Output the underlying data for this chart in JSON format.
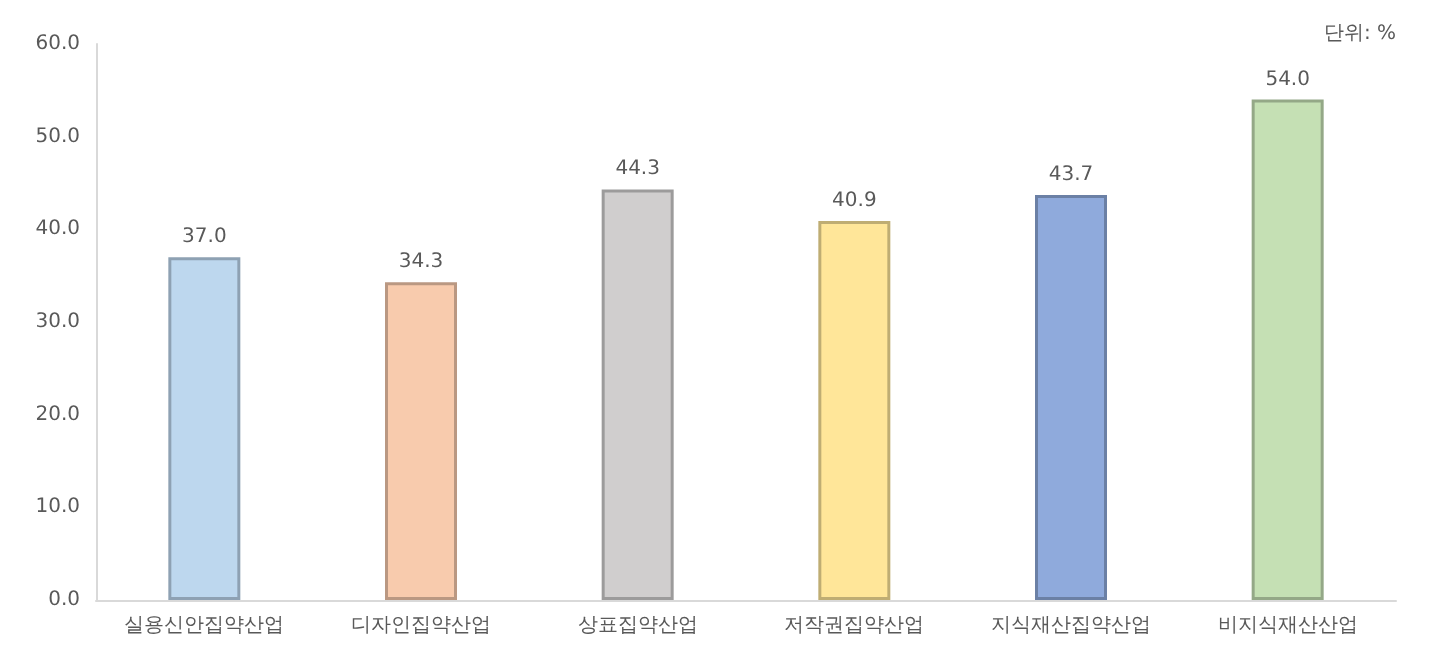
{
  "chart_data": {
    "type": "bar",
    "categories": [
      "실용신안집약산업",
      "디자인집약산업",
      "상표집약산업",
      "저작권집약산업",
      "지식재산집약산업",
      "비지식재산산업"
    ],
    "values": [
      37.0,
      34.3,
      44.3,
      40.9,
      43.7,
      54.0
    ],
    "colors": [
      "#bdd7ee",
      "#f8cbad",
      "#d0cece",
      "#ffe699",
      "#8faadc",
      "#c5e0b4"
    ],
    "value_labels": [
      "37.0",
      "34.3",
      "44.3",
      "40.9",
      "43.7",
      "54.0"
    ],
    "ylim": [
      0,
      60
    ],
    "yticks": [
      {
        "value": 0,
        "label": "0.0"
      },
      {
        "value": 10,
        "label": "10.0"
      },
      {
        "value": 20,
        "label": "20.0"
      },
      {
        "value": 30,
        "label": "30.0"
      },
      {
        "value": 40,
        "label": "40.0"
      },
      {
        "value": 50,
        "label": "50.0"
      },
      {
        "value": 60,
        "label": "60.0"
      }
    ],
    "annotations": [
      "단위: %"
    ]
  }
}
